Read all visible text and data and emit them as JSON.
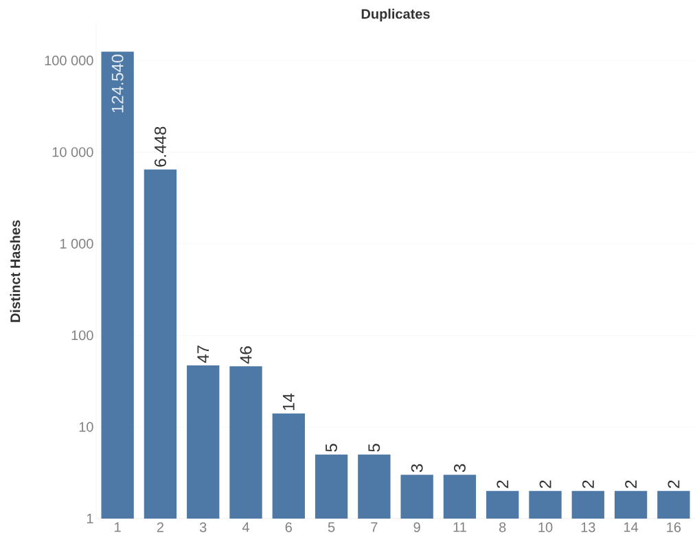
{
  "chart_data": {
    "type": "bar",
    "title": "Duplicates",
    "ylabel": "Distinct Hashes",
    "categories": [
      "1",
      "2",
      "3",
      "4",
      "6",
      "5",
      "7",
      "9",
      "11",
      "8",
      "10",
      "13",
      "14",
      "16"
    ],
    "values": [
      124540,
      6448,
      47,
      46,
      14,
      5,
      5,
      3,
      3,
      2,
      2,
      2,
      2,
      2
    ],
    "value_labels": [
      "124.540",
      "6.448",
      "47",
      "46",
      "14",
      "5",
      "5",
      "3",
      "3",
      "2",
      "2",
      "2",
      "2",
      "2"
    ],
    "color": "#4e79a7",
    "log": "y",
    "ylim": [
      1,
      250000
    ],
    "yticks": [
      1,
      10,
      100,
      {
        "value": 1000,
        "label": "1 000"
      },
      {
        "value": 10000,
        "label": "10 000"
      },
      {
        "value": 100000,
        "label": "100 000"
      }
    ],
    "grid": "y"
  }
}
